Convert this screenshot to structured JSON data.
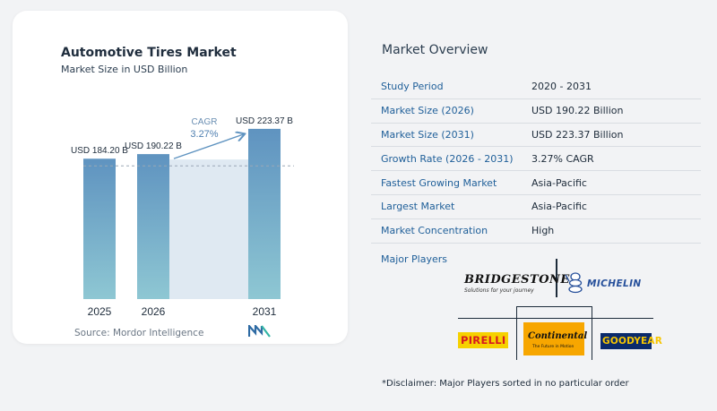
{
  "chart": {
    "title": "Automotive Tires Market",
    "subtitle": "Market Size in USD Billion",
    "cagr_label": "CAGR",
    "cagr_value": "3.27%",
    "source_label": "Source:",
    "source_text": "Mordor Intelligence"
  },
  "chart_data": {
    "type": "bar",
    "title": "Automotive Tires Market",
    "subtitle": "Market Size in USD Billion",
    "categories": [
      "2025",
      "2026",
      "2031"
    ],
    "values": [
      184.2,
      190.22,
      223.37
    ],
    "data_labels": [
      "USD 184.20 B",
      "USD 190.22 B",
      "USD 223.37 B"
    ],
    "annotation": "CAGR 3.27%",
    "colors": {
      "bar_top": "#5f93c0",
      "bar_bottom": "#8ec7d3",
      "shade": "#dfe9f2",
      "text": "#1d2b3a"
    },
    "ylim": [
      0,
      235
    ],
    "grid": false
  },
  "overview": {
    "title": "Market Overview",
    "rows": [
      {
        "key": "Study Period",
        "value": "2020 - 2031"
      },
      {
        "key": "Market Size (2026)",
        "value": "USD 190.22 Billion"
      },
      {
        "key": "Market Size (2031)",
        "value": "USD 223.37 Billion"
      },
      {
        "key": "Growth Rate (2026 - 2031)",
        "value": "3.27% CAGR"
      },
      {
        "key": "Fastest Growing Market",
        "value": "Asia-Pacific"
      },
      {
        "key": "Largest Market",
        "value": "Asia-Pacific"
      },
      {
        "key": "Market Concentration",
        "value": "High"
      }
    ]
  },
  "players": {
    "label": "Major Players",
    "bridgestone": {
      "name": "BRIDGESTONE",
      "tagline": "Solutions for your journey"
    },
    "michelin": {
      "name": "MICHELIN"
    },
    "pirelli": {
      "name": "PIRELLI"
    },
    "continental": {
      "name": "Continental",
      "tagline": "The Future in Motion"
    },
    "goodyear": {
      "name": "GOODYEAR"
    }
  },
  "disclaimer": "*Disclaimer: Major Players sorted in no particular order"
}
